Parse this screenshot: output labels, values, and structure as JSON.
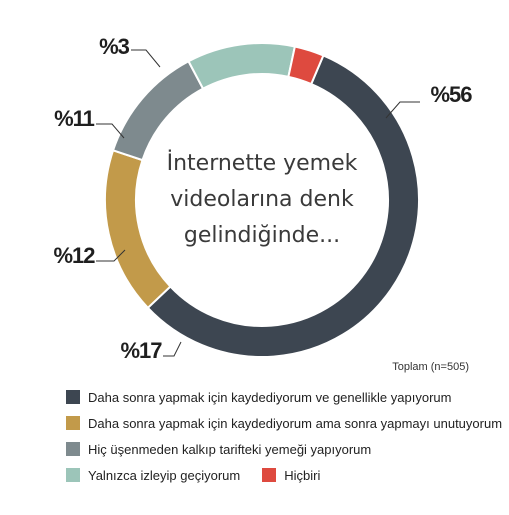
{
  "chart_data": {
    "type": "pie",
    "donut": true,
    "center_text": [
      "İnternette yemek",
      "videolarına denk",
      "gelindiğinde..."
    ],
    "total_label": "Toplam (n=505)",
    "slices": [
      {
        "label": "Daha sonra yapmak için kaydediyorum ve genellikle yapıyorum",
        "value": 56,
        "display": "%56",
        "color": "#3d4651"
      },
      {
        "label": "Daha sonra yapmak için kaydediyorum ama sonra yapmayı unutuyorum",
        "value": 17,
        "display": "%17",
        "color": "#c29a4a"
      },
      {
        "label": "Hiç üşenmeden kalkıp tarifteki yemeği yapıyorum",
        "value": 12,
        "display": "%12",
        "color": "#7e8a8e"
      },
      {
        "label": "Yalnızca izleyip geçiyorum",
        "value": 11,
        "display": "%11",
        "color": "#9cc5b9"
      },
      {
        "label": "Hiçbiri",
        "value": 3,
        "display": "%3",
        "color": "#de4a3f"
      }
    ],
    "legend_placement": "bottom"
  }
}
